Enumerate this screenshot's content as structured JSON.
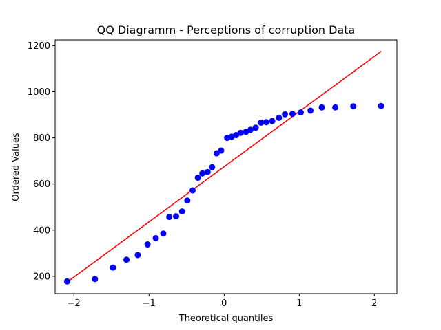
{
  "chart_data": {
    "type": "scatter",
    "title": "QQ Diagramm - Perceptions of corruption Data",
    "xlabel": "Theoretical quantiles",
    "ylabel": "Ordered Values",
    "xlim": [
      -2.25,
      2.3
    ],
    "ylim": [
      125,
      1225
    ],
    "xticks": [
      -2,
      -1,
      0,
      1,
      2
    ],
    "xtick_labels": [
      "−2",
      "−1",
      "0",
      "1",
      "2"
    ],
    "yticks": [
      200,
      400,
      600,
      800,
      1000,
      1200
    ],
    "ytick_labels": [
      "200",
      "400",
      "600",
      "800",
      "1000",
      "1200"
    ],
    "grid": false,
    "colors": {
      "points": "#0000ff",
      "line": "#ff0000"
    },
    "points": {
      "x": [
        -2.09,
        -1.72,
        -1.48,
        -1.3,
        -1.15,
        -1.02,
        -0.91,
        -0.81,
        -0.73,
        -0.64,
        -0.56,
        -0.49,
        -0.42,
        -0.35,
        -0.29,
        -0.22,
        -0.16,
        -0.1,
        -0.04,
        0.04,
        0.1,
        0.16,
        0.22,
        0.29,
        0.35,
        0.42,
        0.49,
        0.56,
        0.64,
        0.73,
        0.81,
        0.91,
        1.02,
        1.15,
        1.3,
        1.48,
        1.72,
        2.09
      ],
      "y": [
        178,
        188,
        238,
        272,
        292,
        338,
        365,
        385,
        457,
        460,
        481,
        528,
        572,
        627,
        646,
        652,
        673,
        733,
        745,
        800,
        805,
        812,
        822,
        826,
        835,
        844,
        866,
        868,
        873,
        887,
        902,
        904,
        910,
        918,
        932,
        932,
        937,
        938
      ]
    },
    "fit_line": {
      "x": [
        -2.09,
        2.09
      ],
      "y": [
        175,
        1175
      ]
    }
  }
}
